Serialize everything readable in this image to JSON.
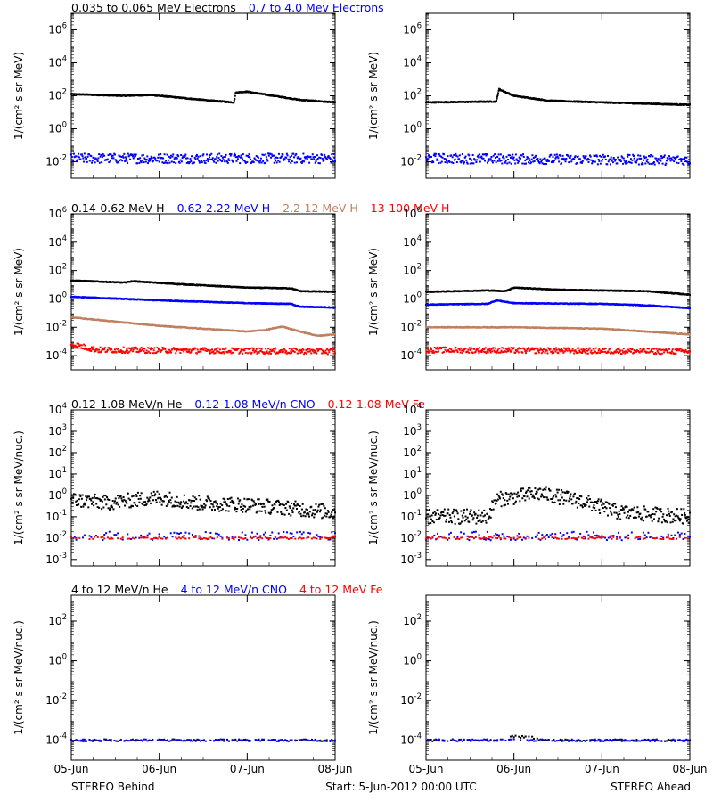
{
  "colors": {
    "black": "#000000",
    "blue": "#0000ff",
    "tan": "#c08060",
    "red": "#ff0000"
  },
  "footer": {
    "left": "STEREO Behind",
    "center": "Start:  5-Jun-2012 00:00 UTC",
    "right": "STEREO Ahead"
  },
  "chart_data": [
    {
      "id": "row1",
      "type": "scatter",
      "titles": [
        {
          "text": "0.035 to 0.065 MeV Electrons",
          "color": "#000000"
        },
        {
          "text": "0.7 to 4.0 Mev Electrons",
          "color": "#0000ff"
        }
      ],
      "ylabel": "1/(cm² s sr MeV)",
      "yscale": "log",
      "ylim_exp": [
        -3,
        7
      ],
      "yticks": [
        {
          "base": "10",
          "exp": "-2",
          "at": -2
        },
        {
          "base": "10",
          "exp": "0",
          "at": 0
        },
        {
          "base": "10",
          "exp": "2",
          "at": 2
        },
        {
          "base": "10",
          "exp": "4",
          "at": 4
        },
        {
          "base": "10",
          "exp": "6",
          "at": 6
        }
      ],
      "xlim_days": [
        0,
        3
      ],
      "xticks": [
        {
          "label": "05-Jun",
          "at": 0
        },
        {
          "label": "06-Jun",
          "at": 1
        },
        {
          "label": "07-Jun",
          "at": 2
        },
        {
          "label": "08-Jun",
          "at": 3
        }
      ],
      "panels": [
        {
          "spacecraft": "behind",
          "series": [
            {
              "color": "#000000",
              "style": "line",
              "points": [
                [
                  0,
                  2.1
                ],
                [
                  0.3,
                  2.05
                ],
                [
                  0.6,
                  2.0
                ],
                [
                  0.9,
                  2.05
                ],
                [
                  1.2,
                  1.9
                ],
                [
                  1.6,
                  1.7
                ],
                [
                  1.85,
                  1.6
                ],
                [
                  1.87,
                  2.2
                ],
                [
                  2.0,
                  2.25
                ],
                [
                  2.3,
                  2.0
                ],
                [
                  2.6,
                  1.75
                ],
                [
                  3.0,
                  1.6
                ]
              ]
            },
            {
              "color": "#0000ff",
              "style": "noisy",
              "points": [
                [
                  0,
                  -1.8
                ],
                [
                  3,
                  -1.8
                ]
              ],
              "noise": 0.3
            }
          ]
        },
        {
          "spacecraft": "ahead",
          "series": [
            {
              "color": "#000000",
              "style": "line",
              "points": [
                [
                  0,
                  1.6
                ],
                [
                  0.8,
                  1.65
                ],
                [
                  0.83,
                  2.4
                ],
                [
                  1.0,
                  2.0
                ],
                [
                  1.4,
                  1.7
                ],
                [
                  2.0,
                  1.6
                ],
                [
                  3.0,
                  1.45
                ]
              ]
            },
            {
              "color": "#0000ff",
              "style": "noisy",
              "points": [
                [
                  0,
                  -1.8
                ],
                [
                  3,
                  -1.9
                ]
              ],
              "noise": 0.3
            }
          ]
        }
      ]
    },
    {
      "id": "row2",
      "type": "scatter",
      "titles": [
        {
          "text": "0.14-0.62 MeV H",
          "color": "#000000"
        },
        {
          "text": "0.62-2.22 MeV H",
          "color": "#0000ff"
        },
        {
          "text": "2.2-12 MeV H",
          "color": "#c08060"
        },
        {
          "text": "13-100 MeV H",
          "color": "#ff0000"
        }
      ],
      "ylabel": "1/(cm² s sr MeV)",
      "yscale": "log",
      "ylim_exp": [
        -5,
        6
      ],
      "yticks": [
        {
          "base": "10",
          "exp": "-4",
          "at": -4
        },
        {
          "base": "10",
          "exp": "-2",
          "at": -2
        },
        {
          "base": "10",
          "exp": "0",
          "at": 0
        },
        {
          "base": "10",
          "exp": "2",
          "at": 2
        },
        {
          "base": "10",
          "exp": "4",
          "at": 4
        },
        {
          "base": "10",
          "exp": "6",
          "at": 6
        }
      ],
      "xlim_days": [
        0,
        3
      ],
      "xticks": [
        {
          "label": "05-Jun",
          "at": 0
        },
        {
          "label": "06-Jun",
          "at": 1
        },
        {
          "label": "07-Jun",
          "at": 2
        },
        {
          "label": "08-Jun",
          "at": 3
        }
      ],
      "panels": [
        {
          "spacecraft": "behind",
          "series": [
            {
              "color": "#000000",
              "style": "line",
              "points": [
                [
                  0,
                  1.3
                ],
                [
                  0.6,
                  1.15
                ],
                [
                  0.7,
                  1.25
                ],
                [
                  1.2,
                  1.05
                ],
                [
                  2.0,
                  0.8
                ],
                [
                  2.5,
                  0.75
                ],
                [
                  2.6,
                  0.55
                ],
                [
                  3.0,
                  0.5
                ]
              ]
            },
            {
              "color": "#0000ff",
              "style": "line",
              "points": [
                [
                  0,
                  0.15
                ],
                [
                  1.0,
                  -0.1
                ],
                [
                  2.0,
                  -0.3
                ],
                [
                  2.5,
                  -0.35
                ],
                [
                  2.6,
                  -0.55
                ],
                [
                  3.0,
                  -0.6
                ]
              ]
            },
            {
              "color": "#c08060",
              "style": "line",
              "points": [
                [
                  0,
                  -1.3
                ],
                [
                  0.5,
                  -1.6
                ],
                [
                  1.0,
                  -1.9
                ],
                [
                  1.5,
                  -2.1
                ],
                [
                  2.0,
                  -2.3
                ],
                [
                  2.2,
                  -2.2
                ],
                [
                  2.4,
                  -1.95
                ],
                [
                  2.6,
                  -2.3
                ],
                [
                  2.8,
                  -2.6
                ],
                [
                  3.0,
                  -2.5
                ]
              ]
            },
            {
              "color": "#ff0000",
              "style": "noisy",
              "points": [
                [
                  0,
                  -3.2
                ],
                [
                  0.3,
                  -3.6
                ],
                [
                  3.0,
                  -3.7
                ]
              ],
              "noise": 0.2
            }
          ]
        },
        {
          "spacecraft": "ahead",
          "series": [
            {
              "color": "#000000",
              "style": "line",
              "points": [
                [
                  0,
                  0.5
                ],
                [
                  0.7,
                  0.6
                ],
                [
                  0.9,
                  0.55
                ],
                [
                  1.0,
                  0.8
                ],
                [
                  1.5,
                  0.65
                ],
                [
                  2.0,
                  0.6
                ],
                [
                  2.5,
                  0.55
                ],
                [
                  3.0,
                  0.3
                ]
              ]
            },
            {
              "color": "#0000ff",
              "style": "line",
              "points": [
                [
                  0,
                  -0.4
                ],
                [
                  0.7,
                  -0.35
                ],
                [
                  0.8,
                  -0.1
                ],
                [
                  1.0,
                  -0.3
                ],
                [
                  2.0,
                  -0.35
                ],
                [
                  2.5,
                  -0.45
                ],
                [
                  3.0,
                  -0.65
                ]
              ]
            },
            {
              "color": "#c08060",
              "style": "line",
              "points": [
                [
                  0,
                  -2.0
                ],
                [
                  1.0,
                  -2.0
                ],
                [
                  1.5,
                  -2.05
                ],
                [
                  2.0,
                  -2.1
                ],
                [
                  2.5,
                  -2.3
                ],
                [
                  3.0,
                  -2.5
                ]
              ]
            },
            {
              "color": "#ff0000",
              "style": "noisy",
              "points": [
                [
                  0,
                  -3.6
                ],
                [
                  3.0,
                  -3.7
                ]
              ],
              "noise": 0.2
            }
          ]
        }
      ]
    },
    {
      "id": "row3",
      "type": "scatter",
      "titles": [
        {
          "text": "0.12-1.08 MeV/n He",
          "color": "#000000"
        },
        {
          "text": "0.12-1.08 MeV/n CNO",
          "color": "#0000ff"
        },
        {
          "text": "0.12-1.08 MeV Fe",
          "color": "#ff0000"
        }
      ],
      "ylabel": "1/(cm² s sr MeV/nuc.)",
      "yscale": "log",
      "ylim_exp": [
        -3.3,
        4
      ],
      "yticks": [
        {
          "base": "10",
          "exp": "-3",
          "at": -3
        },
        {
          "base": "10",
          "exp": "-2",
          "at": -2
        },
        {
          "base": "10",
          "exp": "-1",
          "at": -1
        },
        {
          "base": "10",
          "exp": "0",
          "at": 0
        },
        {
          "base": "10",
          "exp": "1",
          "at": 1
        },
        {
          "base": "10",
          "exp": "2",
          "at": 2
        },
        {
          "base": "10",
          "exp": "3",
          "at": 3
        },
        {
          "base": "10",
          "exp": "4",
          "at": 4
        }
      ],
      "xlim_days": [
        0,
        3
      ],
      "xticks": [
        {
          "label": "05-Jun",
          "at": 0
        },
        {
          "label": "06-Jun",
          "at": 1
        },
        {
          "label": "07-Jun",
          "at": 2
        },
        {
          "label": "08-Jun",
          "at": 3
        }
      ],
      "panels": [
        {
          "spacecraft": "behind",
          "series": [
            {
              "color": "#000000",
              "style": "noisy",
              "points": [
                [
                  0,
                  -0.2
                ],
                [
                  0.4,
                  -0.35
                ],
                [
                  1.0,
                  -0.1
                ],
                [
                  1.4,
                  -0.35
                ],
                [
                  2.0,
                  -0.45
                ],
                [
                  2.5,
                  -0.6
                ],
                [
                  3.0,
                  -0.8
                ]
              ],
              "noise": 0.35
            },
            {
              "color": "#0000ff",
              "style": "sparse",
              "points": [
                [
                  0,
                  -1.9
                ],
                [
                  3.0,
                  -1.9
                ]
              ],
              "noise": 0.2
            },
            {
              "color": "#ff0000",
              "style": "sparse",
              "points": [
                [
                  0,
                  -2.0
                ],
                [
                  3.0,
                  -2.0
                ]
              ],
              "noise": 0.05
            }
          ]
        },
        {
          "spacecraft": "ahead",
          "series": [
            {
              "color": "#000000",
              "style": "noisy",
              "points": [
                [
                  0,
                  -1.0
                ],
                [
                  0.7,
                  -1.0
                ],
                [
                  0.8,
                  -0.2
                ],
                [
                  1.3,
                  0.1
                ],
                [
                  1.8,
                  -0.3
                ],
                [
                  2.2,
                  -0.8
                ],
                [
                  3.0,
                  -1.0
                ]
              ],
              "noise": 0.35
            },
            {
              "color": "#0000ff",
              "style": "sparse",
              "points": [
                [
                  0,
                  -1.9
                ],
                [
                  3.0,
                  -1.9
                ]
              ],
              "noise": 0.2
            },
            {
              "color": "#ff0000",
              "style": "sparse",
              "points": [
                [
                  0,
                  -2.0
                ],
                [
                  3.0,
                  -2.0
                ]
              ],
              "noise": 0.05
            }
          ]
        }
      ]
    },
    {
      "id": "row4",
      "type": "scatter",
      "titles": [
        {
          "text": "4 to 12 MeV/n He",
          "color": "#000000"
        },
        {
          "text": "4 to 12 MeV/n CNO",
          "color": "#0000ff"
        },
        {
          "text": "4 to 12 MeV Fe",
          "color": "#ff0000"
        }
      ],
      "ylabel": "1/(cm² s sr MeV/nuc.)",
      "yscale": "log",
      "ylim_exp": [
        -5,
        3.3
      ],
      "yticks": [
        {
          "base": "10",
          "exp": "-4",
          "at": -4
        },
        {
          "base": "10",
          "exp": "-2",
          "at": -2
        },
        {
          "base": "10",
          "exp": "0",
          "at": 0
        },
        {
          "base": "10",
          "exp": "2",
          "at": 2
        }
      ],
      "xlim_days": [
        0,
        3
      ],
      "xticks": [
        {
          "label": "05-Jun",
          "at": 0
        },
        {
          "label": "06-Jun",
          "at": 1
        },
        {
          "label": "07-Jun",
          "at": 2
        },
        {
          "label": "08-Jun",
          "at": 3
        }
      ],
      "panels": [
        {
          "spacecraft": "behind",
          "series": [
            {
              "color": "#000000",
              "style": "sparse",
              "points": [
                [
                  0,
                  -4.0
                ],
                [
                  3.0,
                  -4.0
                ]
              ],
              "noise": 0.05
            },
            {
              "color": "#0000ff",
              "style": "sparse",
              "points": [
                [
                  0,
                  -4.0
                ],
                [
                  3.0,
                  -4.0
                ]
              ],
              "noise": 0.05
            }
          ]
        },
        {
          "spacecraft": "ahead",
          "series": [
            {
              "color": "#000000",
              "style": "sparse",
              "points": [
                [
                  0,
                  -4.0
                ],
                [
                  0.85,
                  -4.0
                ],
                [
                  0.9,
                  -3.8
                ],
                [
                  1.2,
                  -3.85
                ],
                [
                  1.3,
                  -4.0
                ],
                [
                  3.0,
                  -4.0
                ]
              ],
              "noise": 0.05
            },
            {
              "color": "#0000ff",
              "style": "sparse",
              "points": [
                [
                  0,
                  -4.0
                ],
                [
                  3.0,
                  -4.0
                ]
              ],
              "noise": 0.05
            }
          ]
        }
      ]
    }
  ]
}
